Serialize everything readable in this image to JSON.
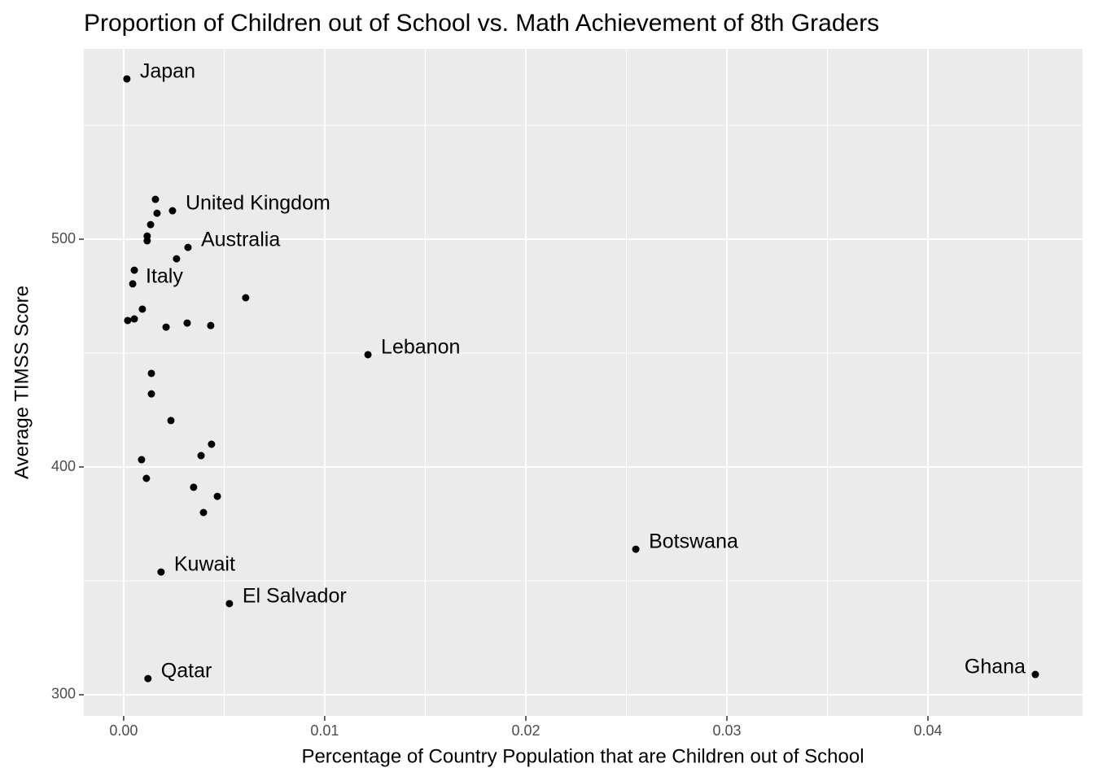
{
  "chart_data": {
    "type": "scatter",
    "title": "Proportion of Children out of School vs. Math Achievement of 8th Graders",
    "x_label": "Percentage of Country Population that are Children out of School",
    "y_label": "Average TIMSS Score",
    "x": [
      0.00016,
      0.00158,
      0.00243,
      0.00166,
      0.00134,
      0.00117,
      0.00117,
      0.0032,
      0.00263,
      0.00053,
      0.00045,
      0.00607,
      0.00093,
      0.0002,
      0.00053,
      0.00316,
      0.00211,
      0.00433,
      0.01215,
      0.00138,
      0.00138,
      0.00235,
      0.00437,
      0.00385,
      0.00089,
      0.00113,
      0.00348,
      0.00466,
      0.00397,
      0.02547,
      0.00186,
      0.00526,
      0.00121,
      0.04534
    ],
    "values": [
      570.4,
      517.5,
      512.5,
      511.4,
      506.4,
      501.4,
      499.3,
      496.4,
      491.4,
      486.4,
      480.4,
      474.3,
      469.3,
      464.3,
      465,
      463.2,
      461.4,
      462.1,
      449.3,
      441.1,
      432.1,
      420.4,
      410,
      405,
      403.2,
      395,
      391.1,
      387.1,
      380,
      363.9,
      353.9,
      340,
      307.1,
      308.9
    ],
    "labels": [
      "Japan",
      null,
      "United Kingdom",
      null,
      null,
      null,
      null,
      "Australia",
      null,
      null,
      "Italy",
      null,
      null,
      null,
      null,
      null,
      null,
      null,
      "Lebanon",
      null,
      null,
      null,
      null,
      null,
      null,
      null,
      null,
      null,
      null,
      "Botswana",
      "Kuwait",
      "El Salvador",
      "Qatar",
      "Ghana"
    ],
    "color": "#000000",
    "xlim": [
      -0.00198,
      0.04769
    ],
    "ylim": [
      290.7,
      583.6
    ],
    "xticks": [
      {
        "value": 0,
        "label": "0.00"
      },
      0.01,
      0.02,
      0.03,
      0.04
    ],
    "yticks": [
      300,
      400,
      500
    ],
    "xminor": [
      0.005,
      0.015,
      0.025,
      0.035,
      0.045
    ],
    "yminor": [
      350,
      450,
      550
    ],
    "grid": true
  }
}
